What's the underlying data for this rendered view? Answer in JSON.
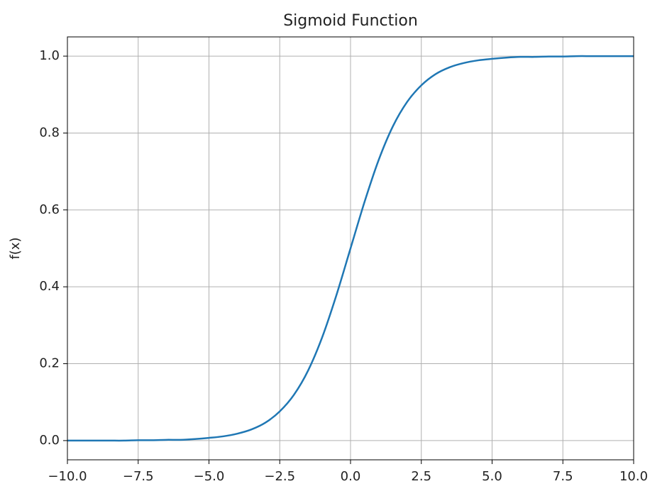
{
  "chart_data": {
    "type": "line",
    "title": "Sigmoid Function",
    "ylabel": "f(x)",
    "x": [
      -10,
      -9.5,
      -9,
      -8.5,
      -8,
      -7.5,
      -7,
      -6.5,
      -6,
      -5.5,
      -5,
      -4.5,
      -4,
      -3.5,
      -3,
      -2.5,
      -2,
      -1.5,
      -1,
      -0.5,
      0,
      0.5,
      1,
      1.5,
      2,
      2.5,
      3,
      3.5,
      4,
      4.5,
      5,
      5.5,
      6,
      6.5,
      7,
      7.5,
      8,
      8.5,
      9,
      9.5,
      10
    ],
    "series": [
      {
        "color": "#1f77b4",
        "values": [
          0,
          0,
          0,
          0,
          0,
          0.001,
          0.001,
          0.002,
          0.002,
          0.004,
          0.007,
          0.011,
          0.018,
          0.029,
          0.047,
          0.076,
          0.119,
          0.182,
          0.269,
          0.378,
          0.5,
          0.622,
          0.731,
          0.818,
          0.881,
          0.924,
          0.953,
          0.971,
          0.982,
          0.989,
          0.993,
          0.996,
          0.998,
          0.998,
          0.999,
          0.999,
          1,
          1,
          1,
          1,
          1
        ]
      }
    ],
    "xlim": [
      -10,
      10
    ],
    "xticks": [
      {
        "value": -10,
        "label": "−10.0"
      },
      {
        "value": -7.5,
        "label": "−7.5"
      },
      {
        "value": -5,
        "label": "−5.0"
      },
      {
        "value": -2.5,
        "label": "−2.5"
      },
      {
        "value": 0,
        "label": "0.0"
      },
      {
        "value": 2.5,
        "label": "2.5"
      },
      {
        "value": 5,
        "label": "5.0"
      },
      {
        "value": 7.5,
        "label": "7.5"
      },
      {
        "value": 10,
        "label": "10.0"
      }
    ],
    "ylim": [
      -0.05,
      1.05
    ],
    "yticks": [
      {
        "value": 0,
        "label": "0.0"
      },
      0.2,
      0.4,
      0.6,
      0.8,
      {
        "value": 1,
        "label": "1.0"
      }
    ],
    "grid": true
  }
}
